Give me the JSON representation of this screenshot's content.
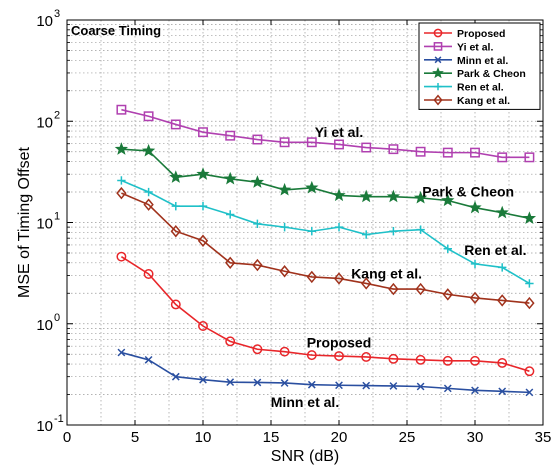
{
  "chart_data": {
    "type": "line",
    "title": "",
    "inset_label": "Coarse Timing",
    "xlabel": "SNR (dB)",
    "ylabel": "MSE of Timing Offset",
    "xlim": [
      0,
      35
    ],
    "ylim": [
      0.1,
      1000
    ],
    "yscale": "log",
    "x_ticks": [
      "0",
      "5",
      "10",
      "15",
      "20",
      "25",
      "30",
      "35"
    ],
    "y_ticks": [
      {
        "base": "10",
        "exp": "-1"
      },
      {
        "base": "10",
        "exp": "0"
      },
      {
        "base": "10",
        "exp": "1"
      },
      {
        "base": "10",
        "exp": "2"
      },
      {
        "base": "10",
        "exp": "3"
      }
    ],
    "grid": true,
    "legend_position": "top-right",
    "x": [
      4,
      6,
      8,
      10,
      12,
      14,
      16,
      18,
      20,
      22,
      24,
      26,
      28,
      30,
      32,
      34
    ],
    "series": [
      {
        "name": "Proposed",
        "color": "#e8262a",
        "marker": "circle",
        "values": [
          4.6,
          3.1,
          1.55,
          0.95,
          0.67,
          0.56,
          0.53,
          0.49,
          0.48,
          0.47,
          0.45,
          0.44,
          0.43,
          0.43,
          0.41,
          0.34
        ]
      },
      {
        "name": "Yi et al.",
        "color": "#b040b0",
        "marker": "square",
        "values": [
          130,
          112,
          93,
          78,
          72,
          66,
          62,
          62,
          59,
          55,
          53,
          50,
          49,
          49,
          44,
          44
        ]
      },
      {
        "name": "Minn et al.",
        "color": "#2a4fa0",
        "marker": "x",
        "values": [
          0.52,
          0.44,
          0.3,
          0.28,
          0.265,
          0.263,
          0.26,
          0.25,
          0.247,
          0.245,
          0.243,
          0.24,
          0.23,
          0.22,
          0.215,
          0.21
        ]
      },
      {
        "name": "Park & Cheon",
        "color": "#1a7a3a",
        "marker": "star",
        "values": [
          53,
          51,
          28,
          30,
          27,
          25,
          21,
          22,
          18.5,
          18,
          18,
          17.5,
          16.5,
          14,
          12.5,
          11
        ]
      },
      {
        "name": "Ren et al.",
        "color": "#1fc0c8",
        "marker": "plus",
        "values": [
          26,
          20,
          14.5,
          14.5,
          12,
          9.7,
          9,
          8.2,
          9,
          7.6,
          8.2,
          8.5,
          5.5,
          3.9,
          3.6,
          2.5
        ]
      },
      {
        "name": "Kang et al.",
        "color": "#a0321c",
        "marker": "diamond",
        "values": [
          19.5,
          15,
          8.2,
          6.6,
          4.0,
          3.8,
          3.3,
          2.9,
          2.8,
          2.5,
          2.2,
          2.2,
          1.95,
          1.8,
          1.7,
          1.6
        ]
      }
    ],
    "annotations": [
      {
        "text": "Yi et al.",
        "x": 20,
        "y": 70
      },
      {
        "text": "Park & Cheon",
        "x": 29.5,
        "y": 18
      },
      {
        "text": "Ren et al.",
        "x": 31.5,
        "y": 4.8
      },
      {
        "text": "Kang et al.",
        "x": 23.5,
        "y": 2.8
      },
      {
        "text": "Proposed",
        "x": 20,
        "y": 0.58
      },
      {
        "text": "Minn et al.",
        "x": 17.5,
        "y": 0.15
      }
    ]
  }
}
